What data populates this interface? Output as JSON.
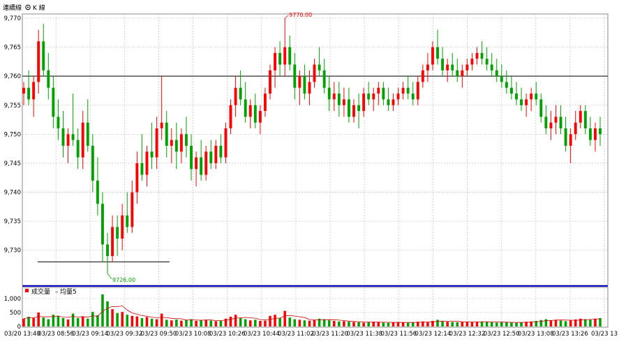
{
  "legend": {
    "line_label": "連續線",
    "kline_label": "K 線"
  },
  "volume_legend": {
    "volume_label": "成交量",
    "ma_label": "均量5"
  },
  "colors": {
    "up": "#ff0000",
    "down": "#00a000",
    "hline": "#000000",
    "separator": "#0000cc",
    "grid": "#c8c8c8",
    "ma": "#cc0000"
  },
  "chart_data": [
    {
      "type": "candlestick",
      "title": "",
      "ylim": [
        9726,
        9770
      ],
      "yticks": [
        9730,
        9735,
        9740,
        9745,
        9750,
        9755,
        9760,
        9765,
        9770
      ],
      "ytick_labels": [
        "9,730",
        "9,735",
        "9,740",
        "9,745",
        "9,750",
        "9,755",
        "9,760",
        "9,765",
        "9,770"
      ],
      "xtick_labels": [
        "03/20 13:40",
        "03/23 08:56",
        "03/23 09:14",
        "03/23 09:32",
        "03/23 09:50",
        "03/23 10:08",
        "03/23 10:26",
        "03/23 10:44",
        "03/23 11:02",
        "03/23 11:20",
        "03/23 11:38",
        "03/23 11:56",
        "03/23 12:14",
        "03/23 12:32",
        "03/23 12:50",
        "03/23 13:08",
        "03/23 13:26",
        "03/23 13"
      ],
      "reference_line": 9760,
      "support_line": 9728,
      "max_annotation": {
        "label": "9770.00",
        "value": 9770
      },
      "min_annotation": {
        "label": "9726.00",
        "value": 9726
      },
      "candles_ohlc": [
        [
          9757,
          9759,
          9755,
          9758
        ],
        [
          9758,
          9761,
          9755,
          9756
        ],
        [
          9756,
          9760,
          9753,
          9759
        ],
        [
          9759,
          9768,
          9757,
          9766
        ],
        [
          9766,
          9769,
          9760,
          9761
        ],
        [
          9761,
          9764,
          9756,
          9758
        ],
        [
          9758,
          9760,
          9751,
          9753
        ],
        [
          9753,
          9756,
          9749,
          9751
        ],
        [
          9751,
          9754,
          9746,
          9748
        ],
        [
          9748,
          9751,
          9745,
          9750
        ],
        [
          9750,
          9757,
          9748,
          9749
        ],
        [
          9749,
          9751,
          9744,
          9746
        ],
        [
          9746,
          9754,
          9744,
          9752
        ],
        [
          9752,
          9756,
          9747,
          9748
        ],
        [
          9748,
          9750,
          9740,
          9742
        ],
        [
          9742,
          9746,
          9736,
          9738
        ],
        [
          9738,
          9740,
          9728,
          9731
        ],
        [
          9731,
          9733,
          9726,
          9729
        ],
        [
          9729,
          9736,
          9728,
          9734
        ],
        [
          9734,
          9736,
          9729,
          9732
        ],
        [
          9732,
          9738,
          9730,
          9736
        ],
        [
          9736,
          9740,
          9733,
          9734
        ],
        [
          9734,
          9742,
          9733,
          9740
        ],
        [
          9740,
          9747,
          9738,
          9745
        ],
        [
          9745,
          9750,
          9742,
          9743
        ],
        [
          9743,
          9748,
          9741,
          9747
        ],
        [
          9747,
          9752,
          9744,
          9746
        ],
        [
          9746,
          9753,
          9744,
          9751
        ],
        [
          9751,
          9760,
          9749,
          9752
        ],
        [
          9752,
          9754,
          9746,
          9748
        ],
        [
          9748,
          9751,
          9745,
          9749
        ],
        [
          9749,
          9752,
          9744,
          9747
        ],
        [
          9747,
          9751,
          9745,
          9750
        ],
        [
          9750,
          9753,
          9746,
          9748
        ],
        [
          9748,
          9750,
          9742,
          9744
        ],
        [
          9744,
          9747,
          9741,
          9746
        ],
        [
          9746,
          9749,
          9742,
          9743
        ],
        [
          9743,
          9748,
          9742,
          9747
        ],
        [
          9747,
          9749,
          9744,
          9745
        ],
        [
          9745,
          9749,
          9744,
          9748
        ],
        [
          9748,
          9750,
          9745,
          9746
        ],
        [
          9746,
          9752,
          9745,
          9751
        ],
        [
          9751,
          9756,
          9750,
          9755
        ],
        [
          9755,
          9760,
          9753,
          9758
        ],
        [
          9758,
          9761,
          9755,
          9756
        ],
        [
          9756,
          9759,
          9752,
          9753
        ],
        [
          9753,
          9756,
          9751,
          9755
        ],
        [
          9755,
          9757,
          9751,
          9752
        ],
        [
          9752,
          9755,
          9750,
          9754
        ],
        [
          9754,
          9758,
          9753,
          9757
        ],
        [
          9757,
          9762,
          9756,
          9761
        ],
        [
          9761,
          9765,
          9758,
          9764
        ],
        [
          9764,
          9766,
          9760,
          9762
        ],
        [
          9762,
          9770,
          9760,
          9765
        ],
        [
          9765,
          9767,
          9761,
          9762
        ],
        [
          9762,
          9764,
          9756,
          9758
        ],
        [
          9758,
          9761,
          9755,
          9760
        ],
        [
          9760,
          9762,
          9756,
          9757
        ],
        [
          9757,
          9761,
          9755,
          9759
        ],
        [
          9759,
          9763,
          9758,
          9762
        ],
        [
          9762,
          9765,
          9760,
          9761
        ],
        [
          9761,
          9763,
          9757,
          9758
        ],
        [
          9758,
          9760,
          9754,
          9756
        ],
        [
          9756,
          9759,
          9754,
          9757
        ],
        [
          9757,
          9759,
          9753,
          9755
        ],
        [
          9755,
          9758,
          9753,
          9756
        ],
        [
          9756,
          9758,
          9752,
          9753
        ],
        [
          9753,
          9756,
          9752,
          9755
        ],
        [
          9755,
          9757,
          9751,
          9754
        ],
        [
          9754,
          9758,
          9753,
          9757
        ],
        [
          9757,
          9759,
          9755,
          9756
        ],
        [
          9756,
          9758,
          9754,
          9757
        ],
        [
          9757,
          9759,
          9755,
          9758
        ],
        [
          9758,
          9759,
          9755,
          9756
        ],
        [
          9756,
          9758,
          9754,
          9755
        ],
        [
          9755,
          9757,
          9754,
          9756
        ],
        [
          9756,
          9758,
          9755,
          9757
        ],
        [
          9757,
          9759,
          9756,
          9758
        ],
        [
          9758,
          9760,
          9756,
          9757
        ],
        [
          9757,
          9759,
          9755,
          9756
        ],
        [
          9756,
          9760,
          9755,
          9759
        ],
        [
          9759,
          9762,
          9758,
          9761
        ],
        [
          9761,
          9764,
          9759,
          9762
        ],
        [
          9762,
          9766,
          9761,
          9765
        ],
        [
          9765,
          9768,
          9762,
          9763
        ],
        [
          9763,
          9765,
          9760,
          9761
        ],
        [
          9761,
          9763,
          9759,
          9762
        ],
        [
          9762,
          9764,
          9760,
          9761
        ],
        [
          9761,
          9763,
          9759,
          9760
        ],
        [
          9760,
          9762,
          9758,
          9761
        ],
        [
          9761,
          9763,
          9760,
          9762
        ],
        [
          9762,
          9764,
          9761,
          9763
        ],
        [
          9763,
          9765,
          9762,
          9764
        ],
        [
          9764,
          9766,
          9762,
          9763
        ],
        [
          9763,
          9765,
          9761,
          9762
        ],
        [
          9762,
          9764,
          9760,
          9761
        ],
        [
          9761,
          9763,
          9759,
          9760
        ],
        [
          9760,
          9762,
          9758,
          9759
        ],
        [
          9759,
          9761,
          9757,
          9758
        ],
        [
          9758,
          9760,
          9756,
          9757
        ],
        [
          9757,
          9759,
          9755,
          9756
        ],
        [
          9756,
          9758,
          9754,
          9755
        ],
        [
          9755,
          9757,
          9753,
          9756
        ],
        [
          9756,
          9758,
          9754,
          9757
        ],
        [
          9757,
          9759,
          9755,
          9756
        ],
        [
          9756,
          9757,
          9752,
          9753
        ],
        [
          9753,
          9755,
          9750,
          9751
        ],
        [
          9751,
          9754,
          9749,
          9752
        ],
        [
          9752,
          9755,
          9750,
          9753
        ],
        [
          9753,
          9755,
          9750,
          9751
        ],
        [
          9751,
          9753,
          9747,
          9748
        ],
        [
          9748,
          9751,
          9745,
          9750
        ],
        [
          9750,
          9754,
          9749,
          9752
        ],
        [
          9752,
          9755,
          9751,
          9754
        ],
        [
          9754,
          9755,
          9750,
          9751
        ],
        [
          9751,
          9753,
          9748,
          9749
        ],
        [
          9749,
          9752,
          9747,
          9751
        ],
        [
          9751,
          9753,
          9748,
          9750
        ]
      ]
    },
    {
      "type": "bar",
      "title": "",
      "ylim": [
        0,
        1200
      ],
      "yticks": [
        0,
        500,
        1000
      ],
      "ytick_labels": [
        "0",
        "500",
        "1,000"
      ],
      "volumes": [
        280,
        350,
        300,
        500,
        320,
        260,
        420,
        380,
        300,
        250,
        460,
        300,
        360,
        280,
        520,
        400,
        1150,
        900,
        620,
        480,
        520,
        420,
        380,
        360,
        300,
        340,
        280,
        260,
        460,
        240,
        220,
        250,
        210,
        230,
        260,
        200,
        220,
        240,
        210,
        190,
        200,
        280,
        350,
        420,
        300,
        260,
        220,
        240,
        200,
        210,
        380,
        420,
        300,
        560,
        320,
        260,
        240,
        220,
        210,
        230,
        280,
        260,
        220,
        200,
        180,
        190,
        170,
        160,
        150,
        140,
        160,
        170,
        150,
        140,
        130,
        150,
        160,
        140,
        130,
        150,
        170,
        180,
        160,
        200,
        240,
        180,
        170,
        160,
        150,
        170,
        160,
        150,
        170,
        180,
        160,
        150,
        140,
        160,
        150,
        140,
        130,
        150,
        170,
        180,
        200,
        230,
        260,
        220,
        240,
        210,
        190,
        220,
        250,
        280,
        260,
        240,
        280,
        300
      ],
      "ma5": [
        280,
        315,
        310,
        358,
        350,
        346,
        360,
        376,
        336,
        326,
        362,
        338,
        354,
        330,
        384,
        368,
        542,
        650,
        718,
        710,
        738,
        588,
        484,
        440,
        396,
        364,
        336,
        316,
        328,
        316,
        292,
        286,
        276,
        230,
        234,
        230,
        224,
        232,
        232,
        212,
        212,
        228,
        256,
        300,
        310,
        326,
        310,
        298,
        248,
        234,
        250,
        290,
        302,
        378,
        396,
        372,
        348,
        320,
        250,
        236,
        238,
        240,
        244,
        242,
        228,
        210,
        192,
        180,
        170,
        160,
        156,
        156,
        156,
        152,
        150,
        146,
        146,
        146,
        144,
        146,
        150,
        154,
        156,
        164,
        180,
        192,
        190,
        190,
        182,
        168,
        164,
        160,
        160,
        164,
        168,
        164,
        160,
        158,
        154,
        150,
        144,
        146,
        150,
        154,
        166,
        186,
        208,
        216,
        230,
        232,
        230,
        224,
        222,
        230,
        240,
        250,
        262,
        276
      ]
    }
  ]
}
